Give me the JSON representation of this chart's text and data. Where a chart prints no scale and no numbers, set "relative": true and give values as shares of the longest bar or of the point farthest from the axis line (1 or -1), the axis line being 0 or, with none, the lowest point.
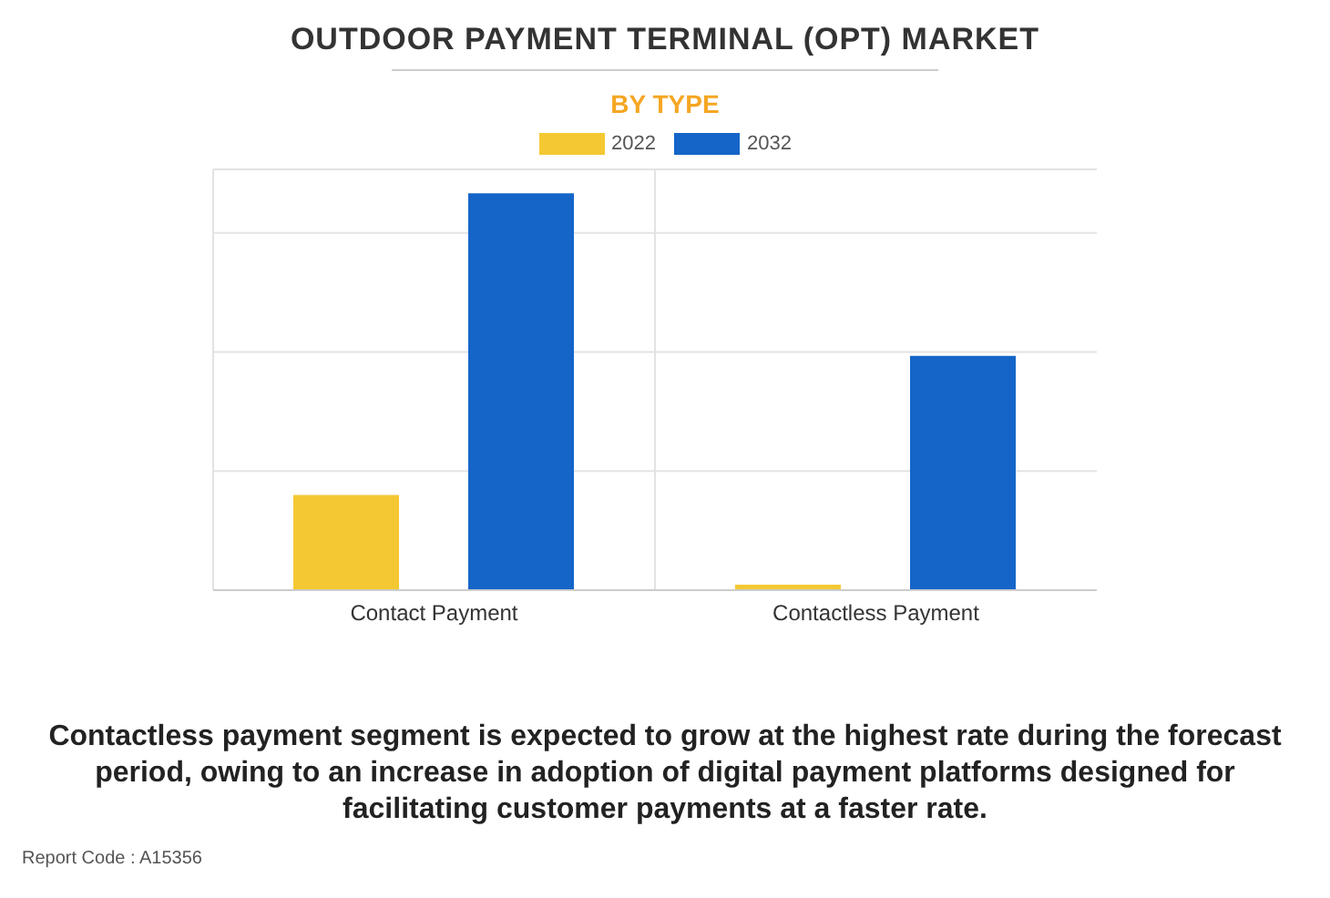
{
  "chart_data": {
    "type": "bar",
    "title": "OUTDOOR PAYMENT TERMINAL (OPT) MARKET",
    "subtitle": "BY TYPE",
    "categories": [
      "Contact Payment",
      "Contactless Payment"
    ],
    "relative": true,
    "grid": true,
    "legend": "top",
    "series": [
      {
        "name": "2022",
        "color": "#f4c832",
        "values": [
          0.24,
          0.014
        ]
      },
      {
        "name": "2032",
        "color": "#1565c8",
        "values": [
          1,
          0.59
        ]
      }
    ],
    "annotations": [
      "Contactless payment segment is expected to grow at the highest rate during the forecast period, owing to an increase in adoption of digital payment platforms designed for facilitating customer payments at a faster rate.",
      "Report Code : A15356"
    ]
  }
}
